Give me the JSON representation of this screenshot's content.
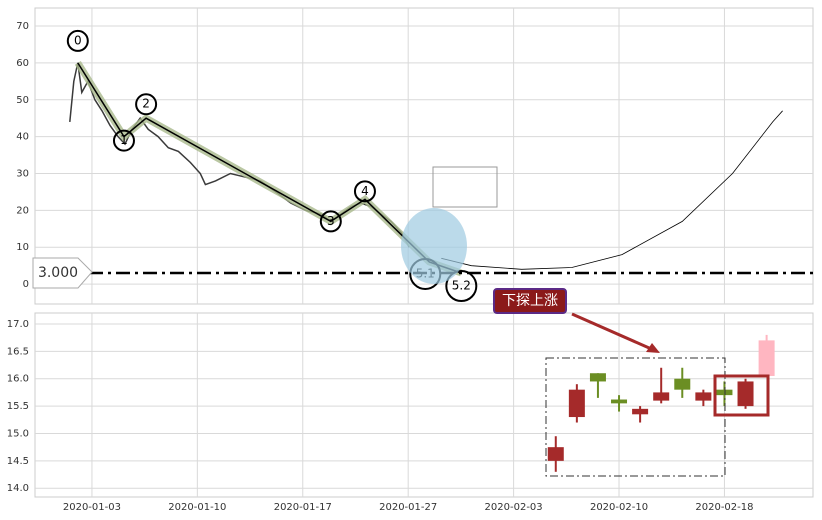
{
  "chart_data": [
    {
      "type": "line",
      "xlim": [
        -2.7,
        34.2
      ],
      "ylim": [
        -5.4,
        74.9
      ],
      "yticks": [
        0,
        10,
        20,
        30,
        40,
        50,
        60,
        70
      ],
      "grid": true,
      "series": [
        {
          "color": "#3a3a3a",
          "x": [
            -1.05,
            -0.86,
            -0.67,
            -0.48,
            -0.19,
            0.14,
            0.48,
            0.86,
            1.24,
            1.57,
            1.9,
            2.29,
            2.67,
            3.14,
            3.62,
            4.1,
            4.67,
            5.14,
            5.38,
            5.86,
            6.57,
            7.29,
            8,
            8.71,
            9.43,
            10.14,
            10.86,
            11.33,
            11.81,
            12.29,
            12.76,
            13.24,
            13.71,
            14.19,
            14.67,
            15.05
          ],
          "values": [
            44,
            55,
            60,
            52,
            55,
            50,
            47,
            43,
            40,
            38,
            42,
            45,
            42,
            40,
            37,
            36,
            33,
            30,
            27,
            28,
            30,
            29,
            28,
            25,
            22,
            20,
            19,
            17,
            19,
            21,
            22,
            21,
            19,
            17,
            14,
            10
          ]
        }
      ],
      "waves": {
        "color": "#a9b98c",
        "x": [
          -0.67,
          1.52,
          2.57,
          11.33,
          12.95,
          16,
          17.52
        ],
        "values": [
          60,
          40,
          45,
          17,
          23,
          6,
          3
        ],
        "labels": [
          "0",
          "1",
          "2",
          "3",
          "4",
          "5.1",
          "5.2"
        ]
      },
      "curve": {
        "color": "#000000",
        "x": [
          16.57,
          18,
          20.38,
          22.76,
          25.14,
          28,
          30.38,
          32.29,
          32.76
        ],
        "values": [
          7,
          5,
          4,
          4.5,
          8,
          17,
          30,
          44,
          47
        ]
      },
      "hline": {
        "value": 3,
        "label": "3.000"
      }
    },
    {
      "type": "candlestick",
      "xlim": [
        -2.7,
        34.2
      ],
      "ylim": [
        13.84,
        17.2
      ],
      "yticks": [
        {
          "value": 14,
          "label": "14.0"
        },
        {
          "value": 14.5,
          "label": "14.5"
        },
        {
          "value": 15,
          "label": "15.0"
        },
        {
          "value": 15.5,
          "label": "15.5"
        },
        {
          "value": 16,
          "label": "16.0"
        },
        {
          "value": 16.5,
          "label": "16.5"
        },
        {
          "value": 17,
          "label": "17.0"
        }
      ],
      "xticks": [
        {
          "value": 0,
          "label": "2020-01-03"
        },
        {
          "value": 5,
          "label": "2020-01-10"
        },
        {
          "value": 10,
          "label": "2020-01-17"
        },
        {
          "value": 15,
          "label": "2020-01-27"
        },
        {
          "value": 20,
          "label": "2020-02-03"
        },
        {
          "value": 25,
          "label": "2020-02-10"
        },
        {
          "value": 30,
          "label": "2020-02-18"
        }
      ],
      "grid": true,
      "x": [
        22,
        23,
        24,
        25,
        26,
        27,
        28,
        29,
        30,
        31,
        32
      ],
      "open": [
        14.5,
        15.3,
        16.1,
        15.62,
        15.35,
        15.6,
        16.0,
        15.6,
        15.8,
        15.5,
        16.05
      ],
      "high": [
        14.95,
        15.9,
        16.1,
        15.7,
        15.5,
        16.2,
        16.2,
        15.8,
        15.95,
        16.0,
        16.8
      ],
      "low": [
        14.3,
        15.2,
        15.65,
        15.4,
        15.2,
        15.55,
        15.65,
        15.5,
        15.5,
        15.45,
        16.05
      ],
      "close": [
        14.75,
        15.8,
        15.95,
        15.55,
        15.45,
        15.75,
        15.8,
        15.75,
        15.7,
        15.95,
        16.7
      ],
      "colors": [
        "#a52a2a",
        "#a52a2a",
        "#6b8e23",
        "#6b8e23",
        "#a52a2a",
        "#a52a2a",
        "#6b8e23",
        "#a52a2a",
        "#6b8e23",
        "#a52a2a",
        "#ffb6c1"
      ],
      "annotation": "下探上涨"
    }
  ]
}
